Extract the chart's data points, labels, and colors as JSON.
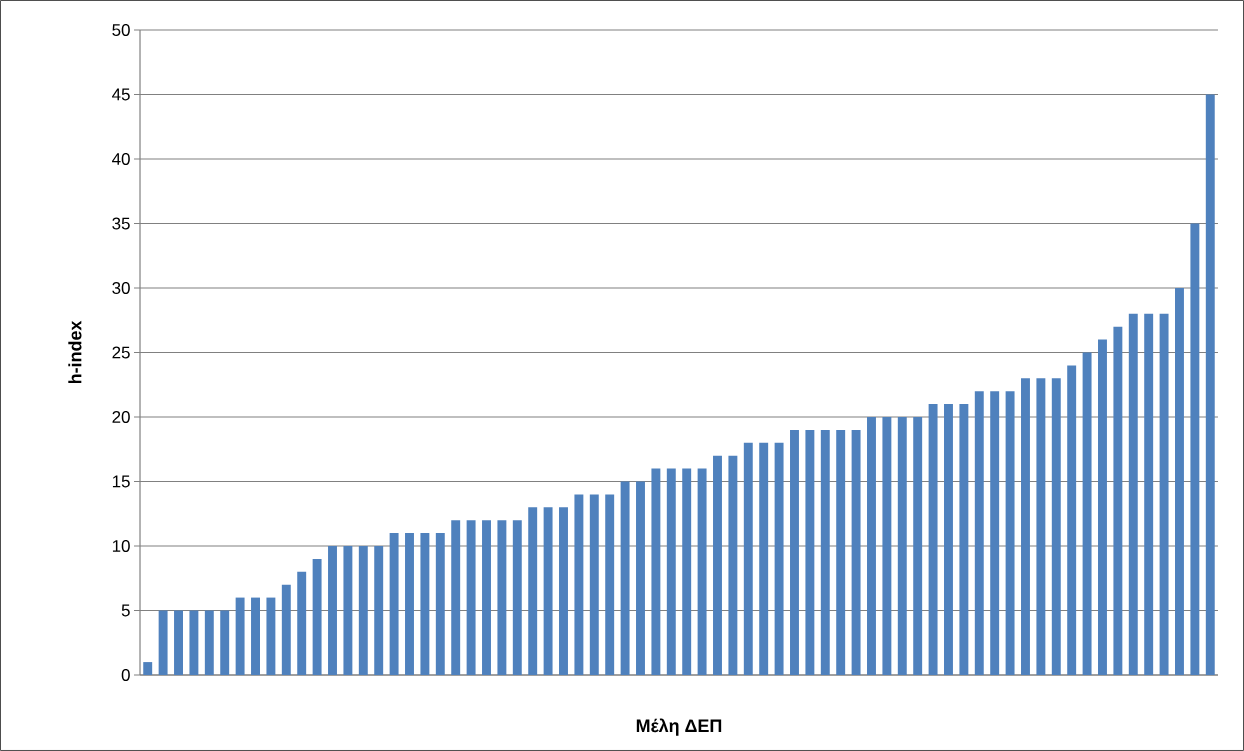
{
  "chart_data": {
    "type": "bar",
    "xlabel": "Μέλη ΔΕΠ",
    "ylabel": "h-index",
    "categories": [
      null,
      null,
      null,
      null,
      null,
      null,
      null,
      null,
      null,
      null,
      null,
      null,
      null,
      null,
      null,
      null,
      null,
      null,
      null,
      null,
      null,
      null,
      null,
      null,
      null,
      null,
      null,
      null,
      null,
      null,
      null,
      null,
      null,
      null,
      null,
      null,
      null,
      null,
      null,
      null,
      null,
      null,
      null,
      null,
      null,
      null,
      null,
      null,
      null,
      null,
      null,
      null,
      null,
      null,
      null,
      null,
      null,
      null,
      null,
      null,
      null,
      null,
      null,
      null,
      null,
      null,
      null,
      null,
      null,
      null
    ],
    "values": [
      1,
      5,
      5,
      5,
      5,
      5,
      6,
      6,
      6,
      7,
      8,
      9,
      10,
      10,
      10,
      10,
      11,
      11,
      11,
      11,
      12,
      12,
      12,
      12,
      12,
      13,
      13,
      13,
      14,
      14,
      14,
      15,
      15,
      16,
      16,
      16,
      16,
      17,
      17,
      18,
      18,
      18,
      19,
      19,
      19,
      19,
      19,
      20,
      20,
      20,
      20,
      21,
      21,
      21,
      22,
      22,
      22,
      23,
      23,
      23,
      24,
      25,
      26,
      27,
      28,
      28,
      28,
      30,
      35,
      45
    ],
    "color": "#4f81bd",
    "ylim": [
      0,
      50
    ],
    "yticks": [
      0,
      5,
      10,
      15,
      20,
      25,
      30,
      35,
      40,
      45,
      50
    ],
    "grid": "y",
    "tick_labels": "y"
  }
}
